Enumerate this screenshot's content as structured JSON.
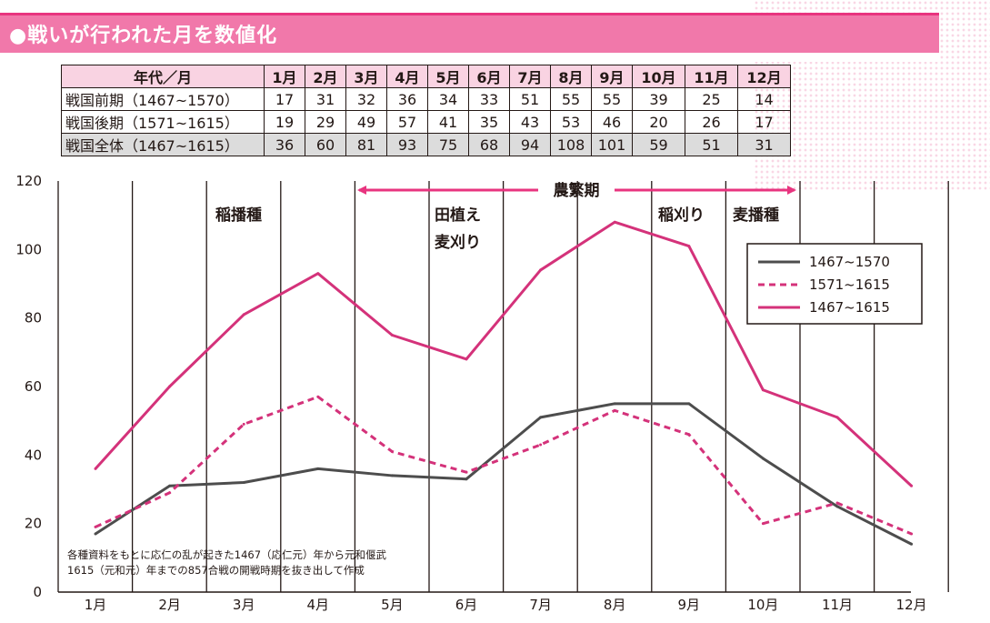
{
  "header": {
    "title": "●戦いが行われた月を数値化"
  },
  "table": {
    "columns": [
      "年代／月",
      "1月",
      "2月",
      "3月",
      "4月",
      "5月",
      "6月",
      "7月",
      "8月",
      "9月",
      "10月",
      "11月",
      "12月"
    ],
    "rows": [
      {
        "label": "戦国前期（1467~1570）",
        "values": [
          "17",
          "31",
          "32",
          "36",
          "34",
          "33",
          "51",
          "55",
          "55",
          "39",
          "25",
          "14"
        ]
      },
      {
        "label": "戦国後期（1571~1615）",
        "values": [
          "19",
          "29",
          "49",
          "57",
          "41",
          "35",
          "43",
          "53",
          "46",
          "20",
          "26",
          "17"
        ]
      },
      {
        "label": "戦国全体（1467~1615）",
        "values": [
          "36",
          "60",
          "81",
          "93",
          "75",
          "68",
          "94",
          "108",
          "101",
          "59",
          "51",
          "31"
        ]
      }
    ]
  },
  "chart_data": {
    "type": "line",
    "categories": [
      "1月",
      "2月",
      "3月",
      "4月",
      "5月",
      "6月",
      "7月",
      "8月",
      "9月",
      "10月",
      "11月",
      "12月"
    ],
    "ylim": [
      0,
      120
    ],
    "yticks": [
      "0",
      "20",
      "40",
      "60",
      "80",
      "100",
      "120"
    ],
    "series": [
      {
        "name": "1467~1570",
        "color": "#4d4d4d",
        "dash": false,
        "values": [
          17,
          31,
          32,
          36,
          34,
          33,
          51,
          55,
          55,
          39,
          25,
          14
        ]
      },
      {
        "name": "1571~1615",
        "color": "#d4327a",
        "dash": true,
        "values": [
          19,
          29,
          49,
          57,
          41,
          35,
          43,
          53,
          46,
          20,
          26,
          17
        ]
      },
      {
        "name": "1467~1615",
        "color": "#d4327a",
        "dash": false,
        "values": [
          36,
          60,
          81,
          93,
          75,
          68,
          94,
          108,
          101,
          59,
          51,
          31
        ]
      }
    ],
    "annotations": {
      "busy_label": "農繁期",
      "sowing_rice": "稲播種",
      "planting_1": "田植え",
      "planting_2": "麦刈り",
      "harvest": "稲刈り",
      "sowing_wheat": "麦播種"
    },
    "note": {
      "line1": "各種資料をもとに応仁の乱が起きた1467（応仁元）年から元和偃武",
      "line2": "1615（元和元）年までの857合戦の開戦時期を抜き出して作成"
    },
    "legend_position": "top-right"
  },
  "colors": {
    "accent": "#e8347f",
    "title_bg": "#f178aa",
    "header_bg": "#f9d3e2",
    "total_bg": "#dcdcdc"
  }
}
